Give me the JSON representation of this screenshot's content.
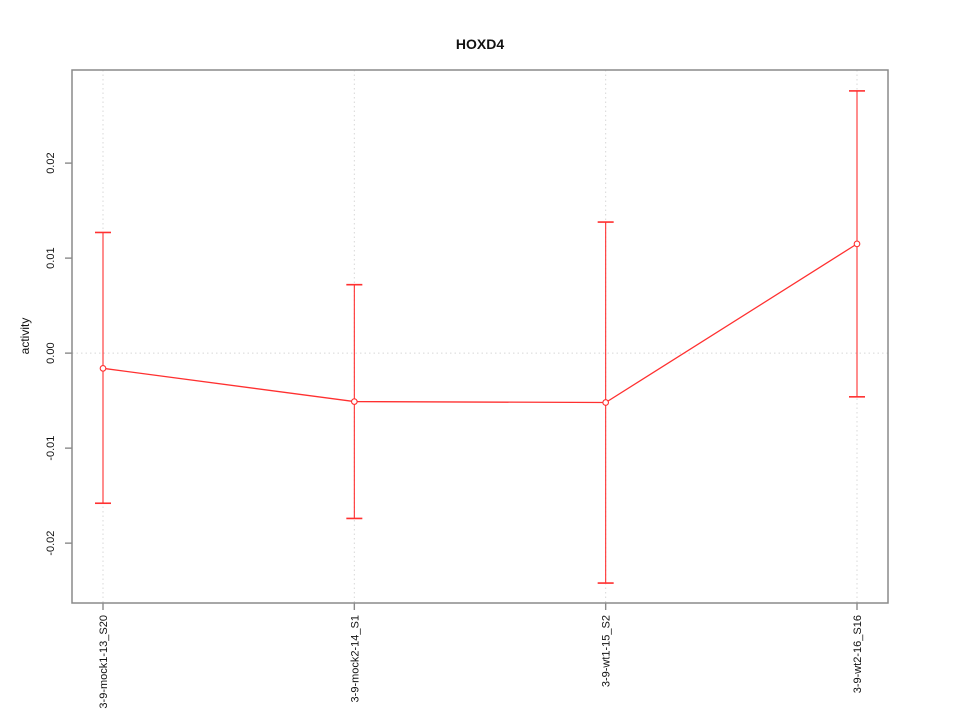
{
  "chart_data": {
    "type": "line",
    "title": "HOXD4",
    "xlabel": "",
    "ylabel": "activity",
    "categories": [
      "3-9-mock1-13_S20",
      "3-9-mock2-14_S1",
      "3-9-wt1-15_S2",
      "3-9-wt2-16_S16"
    ],
    "series": [
      {
        "name": "activity",
        "values": [
          -0.0016,
          -0.0051,
          -0.0052,
          0.0115
        ],
        "error_upper": [
          0.0127,
          0.0072,
          0.0138,
          0.0276
        ],
        "error_lower": [
          -0.0158,
          -0.0174,
          -0.0242,
          -0.0046
        ]
      }
    ],
    "ylim": [
      -0.0263,
      0.0298
    ],
    "yticks": [
      -0.02,
      -0.01,
      0,
      0.01,
      0.02
    ],
    "ytick_labels": [
      "-0.02",
      "-0.01",
      "0.00",
      "0.01",
      "0.02"
    ],
    "legend": "none",
    "point_marker": "open-circle",
    "grid": {
      "vertical_at_categories": true,
      "horizontal_at_zero": true,
      "style": "dotted"
    },
    "colors": {
      "series": "#ff3030",
      "grid": "#d8d8d8",
      "frame": "#8a8a8a",
      "text": "#111111",
      "background": "#ffffff"
    }
  }
}
